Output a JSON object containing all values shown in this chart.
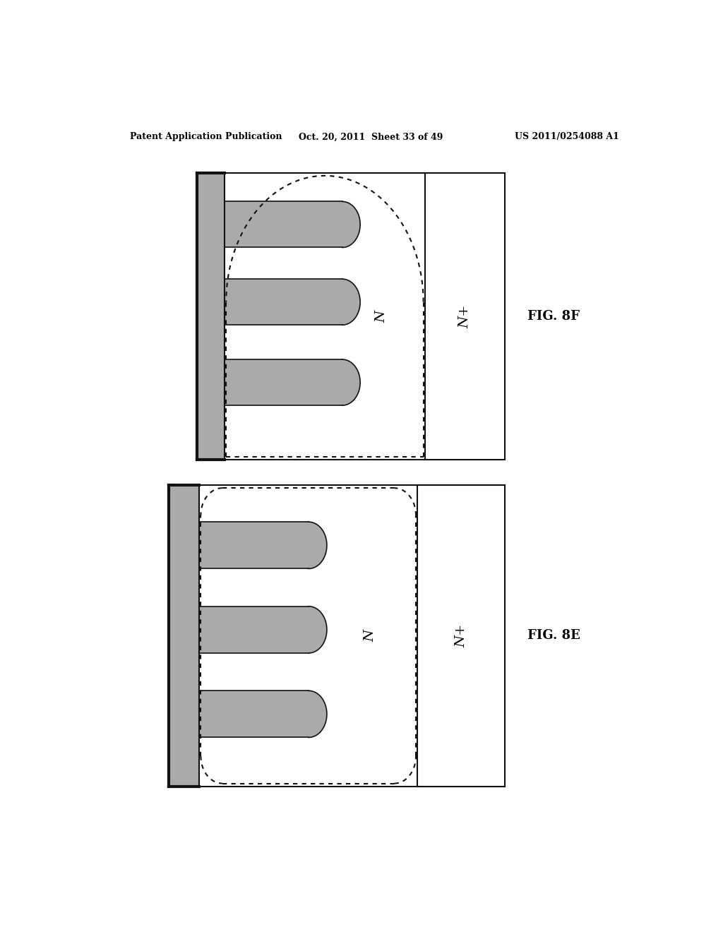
{
  "background_color": "#ffffff",
  "header_text": "Patent Application Publication",
  "header_date": "Oct. 20, 2011  Sheet 33 of 49",
  "header_patent": "US 2011/0254088 A1",
  "gray_color": "#aaaaaa",
  "fig8f_label": "FIG. 8F",
  "fig8e_label": "FIG. 8E",
  "n_label": "N",
  "nplus_label": "N+"
}
